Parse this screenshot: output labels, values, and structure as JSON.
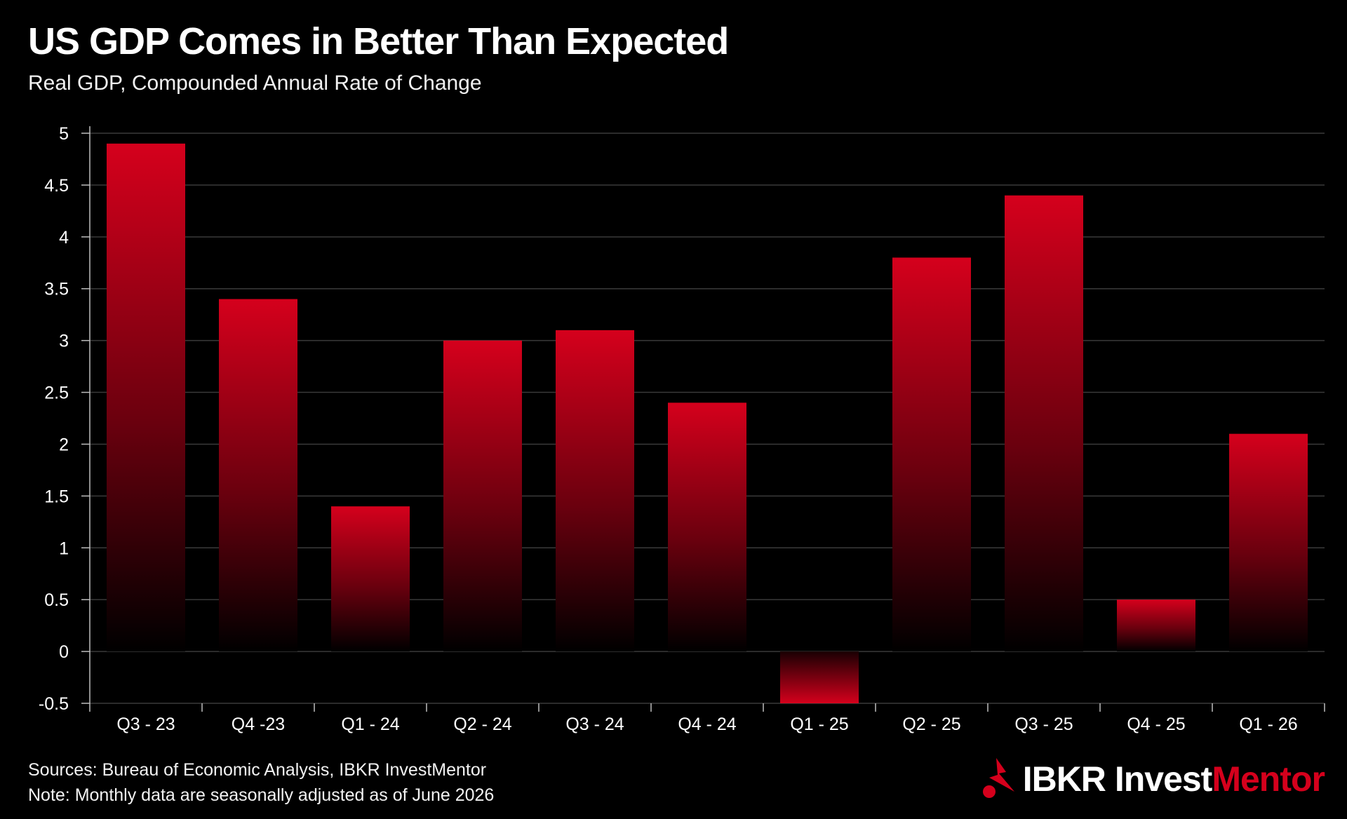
{
  "title": "US GDP Comes in Better Than Expected",
  "subtitle": "Real GDP, Compounded Annual Rate of Change",
  "footer": {
    "sources": "Sources: Bureau of Economic Analysis, IBKR InvestMentor",
    "note": "Note: Monthly data are seasonally adjusted as of June 2026"
  },
  "logo": {
    "brand": "IBKR",
    "invest": "Invest",
    "mentor": "Mentor",
    "icon": "ibkr-flag-icon"
  },
  "colors": {
    "background": "#000000",
    "bar_top": "#d5001c",
    "bar_bottom": "#000000",
    "grid": "#3a3a3a",
    "brand_accent": "#d5001c"
  },
  "chart_data": {
    "type": "bar",
    "title": "US GDP Comes in Better Than Expected",
    "subtitle": "Real GDP, Compounded Annual Rate of Change",
    "xlabel": "",
    "ylabel": "",
    "categories": [
      "Q3 - 23",
      "Q4 -23",
      "Q1 - 24",
      "Q2 - 24",
      "Q3 - 24",
      "Q4 - 24",
      "Q1 - 25",
      "Q2 - 25",
      "Q3 - 25",
      "Q4 - 25",
      "Q1 - 26"
    ],
    "values": [
      4.9,
      3.4,
      1.4,
      3.0,
      3.1,
      2.4,
      -0.5,
      3.8,
      4.4,
      0.5,
      2.1
    ],
    "ylim": [
      -0.5,
      5
    ],
    "yticks": [
      -0.5,
      0,
      0.5,
      1,
      1.5,
      2,
      2.5,
      3,
      3.5,
      4,
      4.5,
      5
    ],
    "ytick_labels": [
      "-0.5",
      "0",
      "0.5",
      "1",
      "1.5",
      "2",
      "2.5",
      "3",
      "3.5",
      "4",
      "4.5",
      "5"
    ],
    "grid": true,
    "legend": "none"
  }
}
